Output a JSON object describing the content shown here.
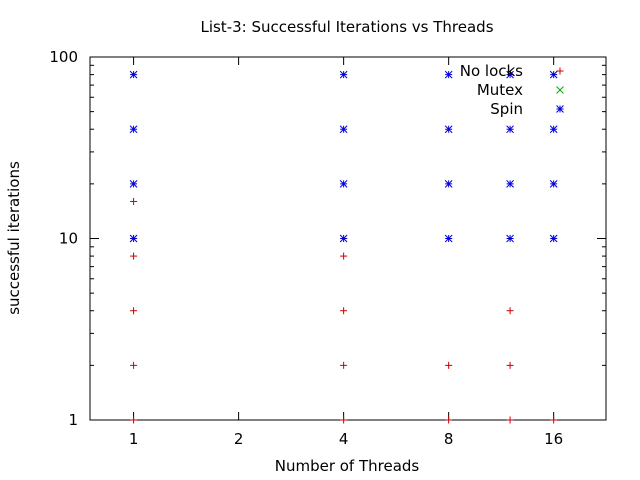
{
  "chart_data": {
    "type": "scatter",
    "title": "List-3: Successful Iterations vs Threads",
    "xlabel": "Number of Threads",
    "ylabel": "successful iterations",
    "x_scale": "log2",
    "y_scale": "log10",
    "xlim": [
      0.75,
      22.6
    ],
    "ylim": [
      1,
      100
    ],
    "x_ticks": [
      1,
      2,
      4,
      8,
      16
    ],
    "x_tick_labels": [
      "1",
      "2",
      "4",
      "8",
      "16"
    ],
    "y_ticks": [
      1,
      10,
      100
    ],
    "y_tick_labels": [
      "1",
      "10",
      "100"
    ],
    "grid": false,
    "legend_position": "top-right",
    "series": [
      {
        "name": "No locks",
        "color": "#cc0000",
        "marker": "plus",
        "points": [
          {
            "x": 1,
            "y": 1
          },
          {
            "x": 1,
            "y": 2
          },
          {
            "x": 1,
            "y": 4
          },
          {
            "x": 1,
            "y": 8
          },
          {
            "x": 1,
            "y": 16
          },
          {
            "x": 4,
            "y": 1
          },
          {
            "x": 4,
            "y": 2
          },
          {
            "x": 4,
            "y": 4
          },
          {
            "x": 4,
            "y": 8
          },
          {
            "x": 8,
            "y": 1
          },
          {
            "x": 8,
            "y": 2
          },
          {
            "x": 12,
            "y": 1
          },
          {
            "x": 12,
            "y": 2
          },
          {
            "x": 12,
            "y": 4
          },
          {
            "x": 16,
            "y": 1
          }
        ]
      },
      {
        "name": "Mutex",
        "color": "#00aa00",
        "marker": "cross",
        "points": []
      },
      {
        "name": "Spin",
        "color": "#0000dd",
        "marker": "star",
        "points": [
          {
            "x": 1,
            "y": 10
          },
          {
            "x": 1,
            "y": 20
          },
          {
            "x": 1,
            "y": 40
          },
          {
            "x": 1,
            "y": 80
          },
          {
            "x": 4,
            "y": 10
          },
          {
            "x": 4,
            "y": 20
          },
          {
            "x": 4,
            "y": 40
          },
          {
            "x": 4,
            "y": 80
          },
          {
            "x": 8,
            "y": 10
          },
          {
            "x": 8,
            "y": 20
          },
          {
            "x": 8,
            "y": 40
          },
          {
            "x": 8,
            "y": 80
          },
          {
            "x": 12,
            "y": 10
          },
          {
            "x": 12,
            "y": 20
          },
          {
            "x": 12,
            "y": 40
          },
          {
            "x": 12,
            "y": 80
          },
          {
            "x": 16,
            "y": 10
          },
          {
            "x": 16,
            "y": 20
          },
          {
            "x": 16,
            "y": 40
          },
          {
            "x": 16,
            "y": 80
          }
        ]
      }
    ]
  }
}
